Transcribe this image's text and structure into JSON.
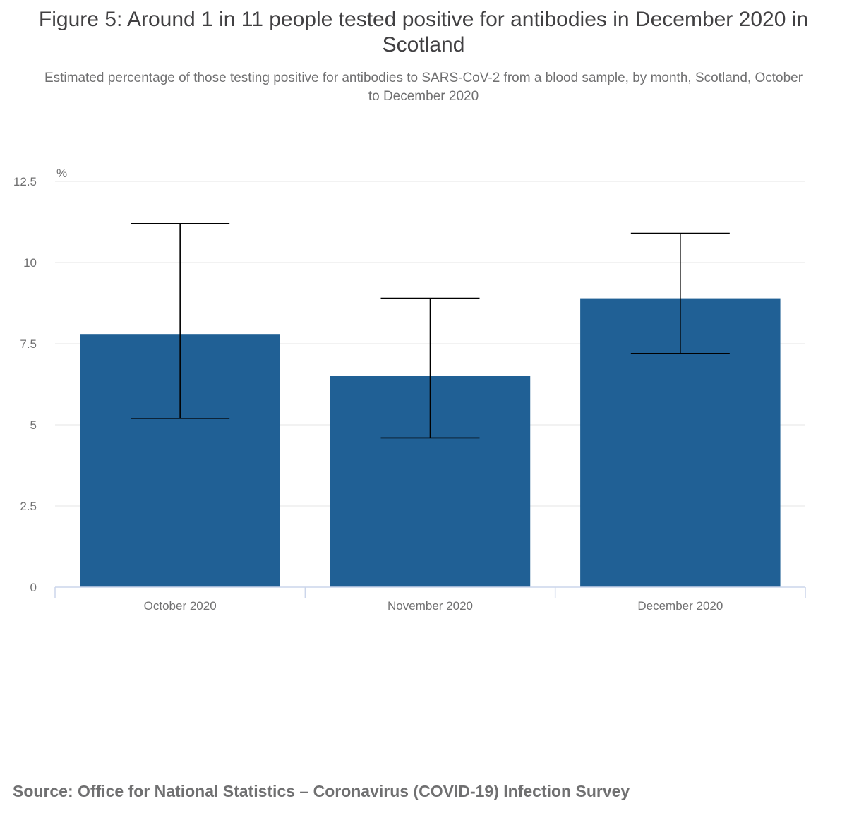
{
  "chart_data": {
    "type": "bar",
    "title": "Figure 5: Around 1 in 11 people tested positive for antibodies in December 2020 in Scotland",
    "subtitle": "Estimated percentage of those testing positive for antibodies to SARS-CoV-2 from a blood sample, by month, Scotland, October to December 2020",
    "ylabel": "%",
    "xlabel": "",
    "ylim": [
      0,
      12.5
    ],
    "yticks": [
      0,
      2.5,
      5,
      7.5,
      10,
      12.5
    ],
    "ytick_labels": [
      "0",
      "2.5",
      "5",
      "7.5",
      "10",
      "12.5"
    ],
    "grid": true,
    "categories": [
      "October 2020",
      "November 2020",
      "December 2020"
    ],
    "values": [
      7.8,
      6.5,
      8.9
    ],
    "error_lower": [
      5.2,
      4.6,
      7.2
    ],
    "error_upper": [
      11.2,
      8.9,
      10.9
    ],
    "bar_color": "#206095",
    "source": "Source: Office for National Statistics – Coronavirus (COVID-19) Infection Survey"
  }
}
